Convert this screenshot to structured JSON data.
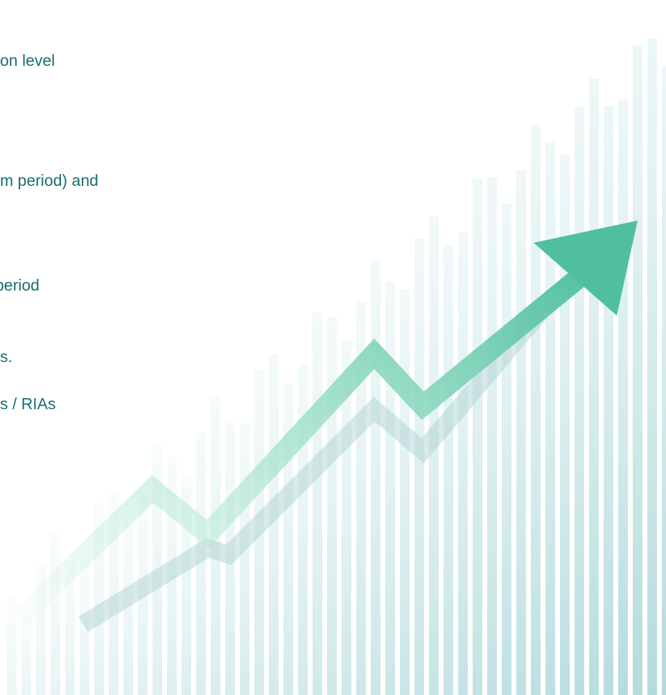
{
  "text_lines": [
    "on level",
    "m period) and",
    "period",
    "s.",
    "s / RIAs"
  ]
}
